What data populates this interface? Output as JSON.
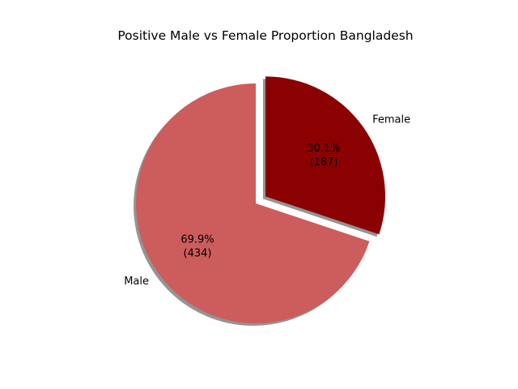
{
  "chart_data": {
    "type": "pie",
    "title": "Positive Male vs Female Proportion Bangladesh",
    "slices": [
      {
        "label": "Male",
        "value": 434,
        "percent": "69.9%",
        "count_label": "(434)",
        "color": "#cd5c5c",
        "exploded": false
      },
      {
        "label": "Female",
        "value": 187,
        "percent": "30.1%",
        "count_label": "(187)",
        "color": "#8b0000",
        "exploded": true
      }
    ],
    "start_angle_deg": 90,
    "direction": "counterclockwise",
    "shadow": true
  }
}
